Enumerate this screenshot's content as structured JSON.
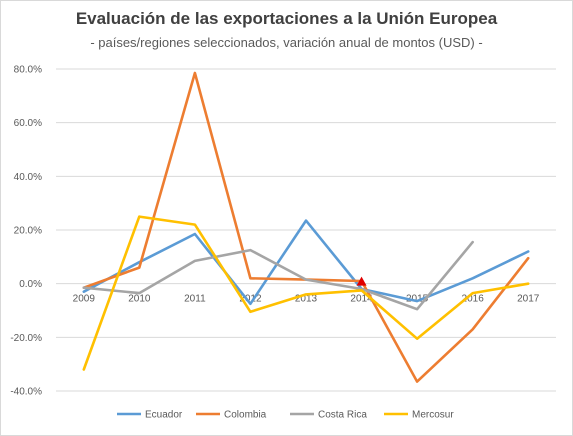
{
  "chart_data": {
    "type": "line",
    "title": "Evaluación de las exportaciones a la Unión Europea",
    "subtitle": "- países/regiones seleccionados, variación anual de montos  (USD) -",
    "x": [
      "2009",
      "2010",
      "2011",
      "2012",
      "2013",
      "2014",
      "2015",
      "2016",
      "2017"
    ],
    "ylim": [
      -40,
      80
    ],
    "yticks": [
      80,
      60,
      40,
      20,
      0,
      -20,
      -40
    ],
    "ytick_labels": [
      "80.0%",
      "60.0%",
      "40.0%",
      "20.0%",
      "0.0%",
      "-20.0%",
      "-40.0%"
    ],
    "grid": true,
    "legend_position": "bottom",
    "series": [
      {
        "name": "Ecuador",
        "color": "#5b9bd5",
        "values": [
          -3,
          8,
          18.5,
          -7.5,
          23.5,
          -2,
          -6.5,
          2,
          12
        ]
      },
      {
        "name": "Colombia",
        "color": "#ed7d31",
        "values": [
          -1.5,
          6,
          78.5,
          2,
          1.5,
          1,
          -36.5,
          -17,
          9.5
        ]
      },
      {
        "name": "Costa Rica",
        "color": "#a5a5a5",
        "values": [
          -1.5,
          -3.5,
          8.5,
          12.5,
          1.5,
          -2,
          -9.5,
          15.5,
          null
        ]
      },
      {
        "name": "Mercosur",
        "color": "#ffc000",
        "values": [
          -32,
          25,
          22,
          -10.5,
          -4,
          -2.5,
          -20.5,
          -3.5,
          0
        ]
      }
    ],
    "annotations": [
      {
        "type": "marker",
        "shape": "triangle",
        "color": "#e00000",
        "x": "2014",
        "y": 0
      }
    ]
  }
}
